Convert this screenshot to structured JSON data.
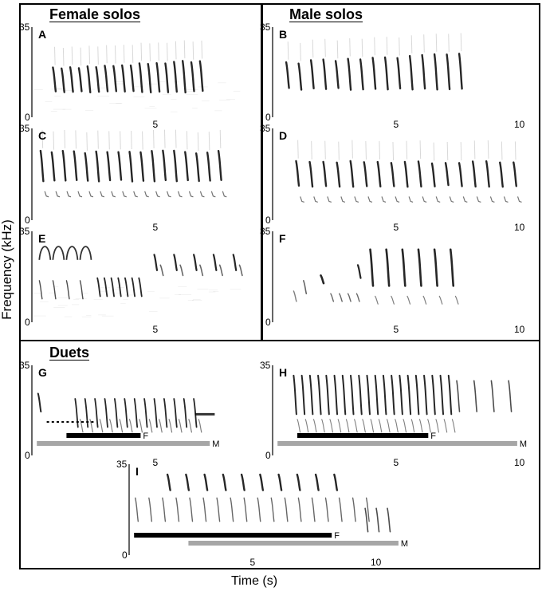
{
  "figure": {
    "y_axis_label": "Frequency (kHz)",
    "x_axis_label": "Time (s)",
    "sections": {
      "female": "Female solos",
      "male": "Male solos",
      "duets": "Duets"
    },
    "colors": {
      "female_bar": "#000000",
      "male_bar": "#a6a6a6",
      "ink": "#000000",
      "frame": "#000000"
    }
  },
  "chart_data": [
    {
      "type": "spectrogram",
      "panel": "A",
      "section": "Female solos",
      "ylim": [
        0,
        35
      ],
      "yticks": [
        "35",
        "0"
      ],
      "xticks": [
        "5"
      ],
      "pattern": "regular",
      "n": 18,
      "t0": 0.9,
      "dt": 0.35,
      "top": [
        19,
        22
      ],
      "bot": [
        10,
        11
      ],
      "sub": false,
      "noise": true,
      "bars": []
    },
    {
      "type": "spectrogram",
      "panel": "B",
      "section": "Male solos",
      "ylim": [
        0,
        35
      ],
      "yticks": [
        "35",
        "0"
      ],
      "xticks": [
        "5",
        "10"
      ],
      "pattern": "regular",
      "n": 15,
      "t0": 0.6,
      "dt": 0.5,
      "top": [
        21,
        25
      ],
      "bot": [
        11,
        12
      ],
      "sub": false,
      "noise": false,
      "bars": []
    },
    {
      "type": "spectrogram",
      "panel": "C",
      "section": "Female solos",
      "ylim": [
        0,
        35
      ],
      "yticks": [
        "35",
        "0"
      ],
      "xticks": [
        "5"
      ],
      "pattern": "regular",
      "n": 17,
      "t0": 0.4,
      "dt": 0.45,
      "top": [
        26,
        26
      ],
      "bot": [
        15,
        15
      ],
      "sub": true,
      "noise": false,
      "bars": []
    },
    {
      "type": "spectrogram",
      "panel": "D",
      "section": "Male solos",
      "ylim": [
        0,
        35
      ],
      "yticks": [
        "35",
        "0"
      ],
      "xticks": [
        "5",
        "10"
      ],
      "pattern": "regular",
      "n": 17,
      "t0": 1.0,
      "dt": 0.55,
      "top": [
        22,
        22
      ],
      "bot": [
        13,
        13
      ],
      "sub": true,
      "noise": false,
      "bars": []
    },
    {
      "type": "spectrogram",
      "panel": "E",
      "section": "Female solos",
      "ylim": [
        0,
        35
      ],
      "yticks": [
        "35",
        "0"
      ],
      "xticks": [
        "5"
      ],
      "pattern": "mixed-e",
      "n": 0,
      "t0": 0,
      "dt": 0,
      "top": [
        0,
        0
      ],
      "bot": [
        0,
        0
      ],
      "sub": false,
      "noise": true,
      "bars": []
    },
    {
      "type": "spectrogram",
      "panel": "F",
      "section": "Male solos",
      "ylim": [
        0,
        35
      ],
      "yticks": [
        "35",
        "0"
      ],
      "xticks": [
        "5",
        "10"
      ],
      "pattern": "mixed-f",
      "n": 0,
      "t0": 0,
      "dt": 0,
      "top": [
        0,
        0
      ],
      "bot": [
        0,
        0
      ],
      "sub": false,
      "noise": false,
      "bars": []
    },
    {
      "type": "spectrogram",
      "panel": "G",
      "section": "Duets",
      "ylim": [
        0,
        35
      ],
      "yticks": [
        "35",
        "0"
      ],
      "xticks": [
        "5"
      ],
      "pattern": "duet-g",
      "n": 0,
      "t0": 0,
      "dt": 0,
      "top": [
        0,
        0
      ],
      "bot": [
        0,
        0
      ],
      "sub": false,
      "noise": false,
      "bars": [
        {
          "singer": "F",
          "start": 1.4,
          "end": 4.4
        },
        {
          "singer": "M",
          "start": 0.2,
          "end": 7.2
        }
      ]
    },
    {
      "type": "spectrogram",
      "panel": "H",
      "section": "Duets",
      "ylim": [
        0,
        35
      ],
      "yticks": [
        "35",
        "0"
      ],
      "xticks": [
        "5",
        "10"
      ],
      "pattern": "duet-h",
      "n": 0,
      "t0": 0,
      "dt": 0,
      "top": [
        0,
        0
      ],
      "bot": [
        0,
        0
      ],
      "sub": false,
      "noise": false,
      "bars": [
        {
          "singer": "F",
          "start": 1.0,
          "end": 6.3
        },
        {
          "singer": "M",
          "start": 0.2,
          "end": 9.9
        }
      ]
    },
    {
      "type": "spectrogram",
      "panel": "I",
      "section": "Duets",
      "ylim": [
        0,
        35
      ],
      "yticks": [
        "35",
        "0"
      ],
      "xticks": [
        "5",
        "10"
      ],
      "pattern": "duet-i",
      "n": 0,
      "t0": 0,
      "dt": 0,
      "top": [
        0,
        0
      ],
      "bot": [
        0,
        0
      ],
      "sub": false,
      "noise": false,
      "bars": [
        {
          "singer": "F",
          "start": 0.2,
          "end": 8.2
        },
        {
          "singer": "M",
          "start": 2.4,
          "end": 10.9
        }
      ]
    }
  ]
}
